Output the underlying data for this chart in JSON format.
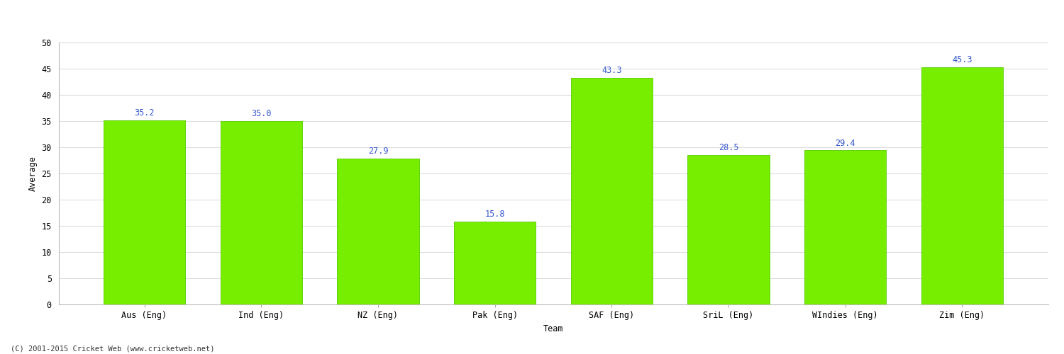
{
  "categories": [
    "Aus (Eng)",
    "Ind (Eng)",
    "NZ (Eng)",
    "Pak (Eng)",
    "SAF (Eng)",
    "SriL (Eng)",
    "WIndies (Eng)",
    "Zim (Eng)"
  ],
  "values": [
    35.2,
    35.0,
    27.9,
    15.8,
    43.3,
    28.5,
    29.4,
    45.3
  ],
  "bar_color": "#77ee00",
  "bar_edge_color": "#55cc00",
  "label_color": "#3355cc",
  "xlabel": "Team",
  "ylabel": "Average",
  "ylim": [
    0,
    50
  ],
  "yticks": [
    0,
    5,
    10,
    15,
    20,
    25,
    30,
    35,
    40,
    45,
    50
  ],
  "grid_color": "#dddddd",
  "background_color": "#ffffff",
  "footer": "(C) 2001-2015 Cricket Web (www.cricketweb.net)",
  "label_fontsize": 8.5,
  "axis_fontsize": 8.5,
  "bar_width": 0.7
}
